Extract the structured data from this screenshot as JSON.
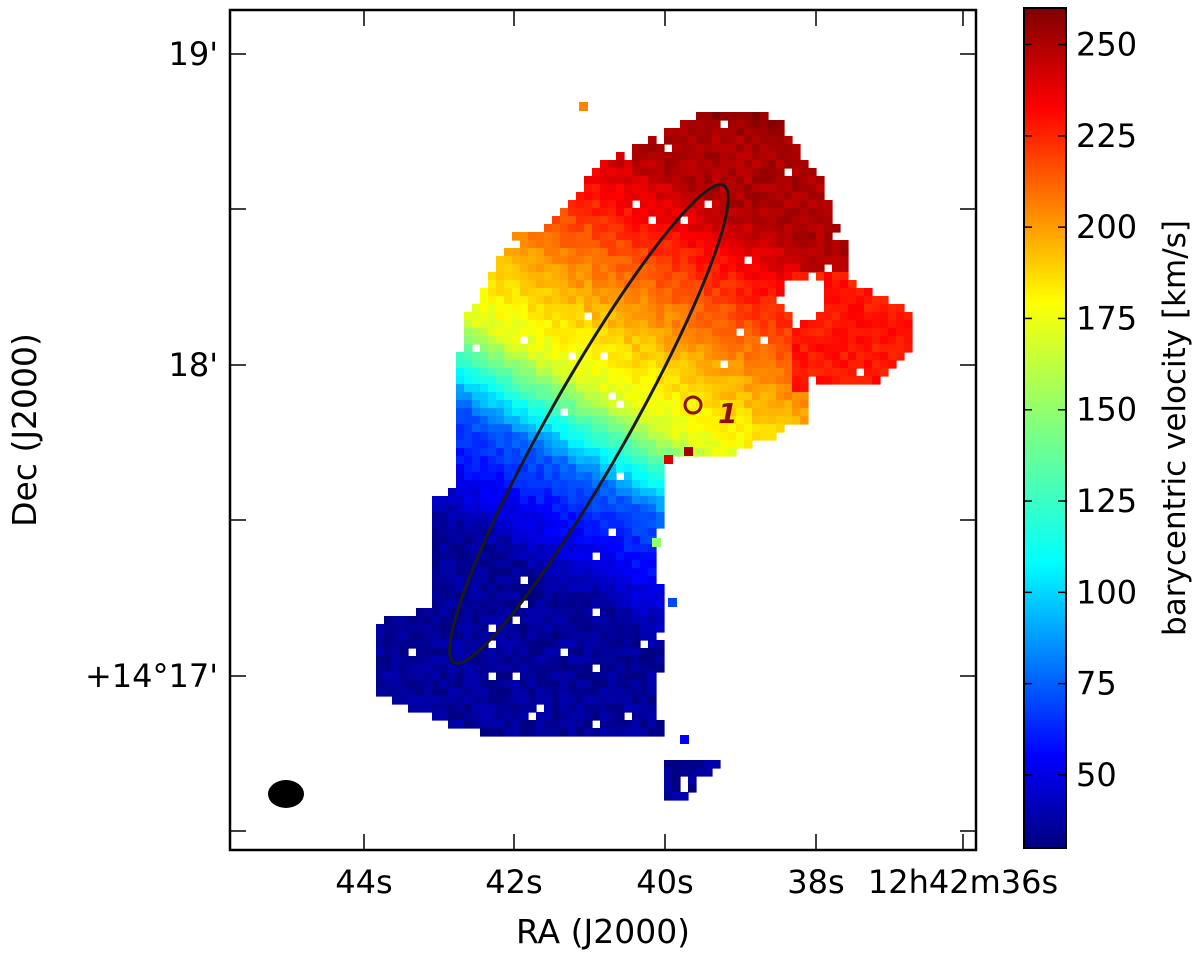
{
  "chart_data": {
    "type": "heatmap",
    "title": "",
    "xlabel": "RA (J2000)",
    "ylabel": "Dec (J2000)",
    "x_ticks": [
      "44s",
      "42s",
      "40s",
      "38s",
      "12h42m36s"
    ],
    "y_ticks": [
      "19'",
      "18'",
      "+14°17'"
    ],
    "colorbar": {
      "label": "barycentric velocity [km/s]",
      "range": [
        30,
        260
      ],
      "ticks": [
        50,
        75,
        100,
        125,
        150,
        175,
        200,
        225,
        250
      ],
      "colormap": "jet"
    },
    "velocity_gradient": {
      "south_value": 35,
      "mid_value": 150,
      "north_value": 250,
      "east_lobe_value": 228
    },
    "overlays": {
      "ellipse": "kinematic-major-axis-ellipse",
      "marker_label": "1",
      "marker_color": "#8b1010",
      "beam": "beam-ellipse"
    },
    "grid": false,
    "legend": "none"
  }
}
